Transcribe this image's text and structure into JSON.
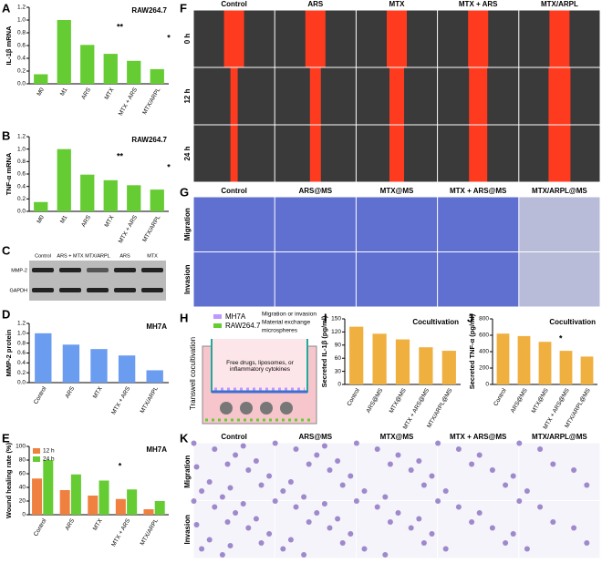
{
  "panel_labels": [
    "A",
    "B",
    "C",
    "D",
    "E",
    "F",
    "G",
    "H",
    "I",
    "J",
    "K"
  ],
  "chart_data": [
    {
      "type": "bar",
      "ylabel": "IL-1β mRNA",
      "categories": [
        "M0",
        "M1",
        "ARS",
        "MTX",
        "MTX + ARS",
        "MTX/ARPL"
      ],
      "values": [
        0.15,
        1.0,
        0.61,
        0.47,
        0.36,
        0.23
      ],
      "color": "#66cc33",
      "ylim": [
        0,
        1.2
      ],
      "yticks": [
        {
          "value": 0,
          "label": "0.0"
        },
        {
          "value": 0.2,
          "label": "0.2"
        },
        {
          "value": 0.4,
          "label": "0.4"
        },
        {
          "value": 0.6,
          "label": "0.6"
        },
        {
          "value": 0.8,
          "label": "0.8"
        },
        {
          "value": 1,
          "label": "1.0"
        },
        {
          "value": 1.2,
          "label": "1.2"
        }
      ],
      "annotations": [
        "RAW264.7",
        "**",
        "*"
      ]
    },
    {
      "type": "bar",
      "ylabel": "TNF-α mRNA",
      "categories": [
        "M0",
        "M1",
        "ARS",
        "MTX",
        "MTX + ARS",
        "MTX/ARPL"
      ],
      "values": [
        0.15,
        1.0,
        0.59,
        0.5,
        0.42,
        0.35
      ],
      "color": "#66cc33",
      "ylim": [
        0,
        1.2
      ],
      "yticks": [
        {
          "value": 0,
          "label": "0.0"
        },
        {
          "value": 0.2,
          "label": "0.2"
        },
        {
          "value": 0.4,
          "label": "0.4"
        },
        {
          "value": 0.6,
          "label": "0.6"
        },
        {
          "value": 0.8,
          "label": "0.8"
        },
        {
          "value": 1,
          "label": "1.0"
        },
        {
          "value": 1.2,
          "label": "1.2"
        }
      ],
      "annotations": [
        "RAW264.7",
        "**",
        "*"
      ]
    },
    {
      "type": "bar",
      "ylabel": "MMP-2 protein",
      "categories": [
        "Control",
        "ARS",
        "MTX",
        "MTX + ARS",
        "MTX/ARPL"
      ],
      "values": [
        1.0,
        0.77,
        0.68,
        0.55,
        0.25
      ],
      "color": "#6a9cf0",
      "ylim": [
        0,
        1.2
      ],
      "yticks": [
        {
          "value": 0,
          "label": "0.0"
        },
        {
          "value": 0.2,
          "label": "0.2"
        },
        {
          "value": 0.4,
          "label": "0.4"
        },
        {
          "value": 0.6,
          "label": "0.6"
        },
        {
          "value": 0.8,
          "label": "0.8"
        },
        {
          "value": 1,
          "label": "1.0"
        },
        {
          "value": 1.2,
          "label": "1.2"
        }
      ],
      "annotations": [
        "MH7A"
      ]
    },
    {
      "type": "grouped-bar",
      "ylabel": "Wound healing rate (%)",
      "categories": [
        "Control",
        "ARS",
        "MTX",
        "MTX + ARS",
        "MTX/ARPL"
      ],
      "series": [
        {
          "name": "12 h",
          "color": "#f08040",
          "values": [
            53,
            36,
            28,
            23,
            8
          ]
        },
        {
          "name": "24 h",
          "color": "#66cc33",
          "values": [
            80,
            59,
            50,
            37,
            20
          ]
        }
      ],
      "ylim": [
        0,
        100
      ],
      "yticks": [
        0,
        20,
        40,
        60,
        80,
        100
      ],
      "annotations": [
        "MH7A",
        "*"
      ]
    },
    {
      "type": "bar",
      "ylabel": "Secreted IL-1β (pg/ml)",
      "categories": [
        "Control",
        "ARS@MS",
        "MTX@MS",
        "MTX + ARS@MS",
        "MTX/ARPL@MS"
      ],
      "values": [
        132,
        116,
        103,
        85,
        77
      ],
      "color": "#f0b040",
      "ylim": [
        0,
        150
      ],
      "yticks": [
        0,
        30,
        60,
        90,
        120,
        150
      ],
      "annotations": [
        "Cocultivation"
      ]
    },
    {
      "type": "bar",
      "ylabel": "Secreted TNF-α (pg/ml)",
      "categories": [
        "Control",
        "ARS@MS",
        "MTX@MS",
        "MTX + ARS@MS",
        "MTX/ARPL@MS"
      ],
      "values": [
        620,
        590,
        520,
        410,
        340
      ],
      "color": "#f0b040",
      "ylim": [
        0,
        800
      ],
      "yticks": [
        0,
        200,
        400,
        600,
        800
      ],
      "annotations": [
        "Cocultivation",
        "*"
      ]
    }
  ],
  "blot": {
    "columns": [
      "Control",
      "ARS + MTX",
      "MTX/ARPL",
      "ARS",
      "MTX"
    ],
    "rows": [
      "MMP-2",
      "GAPDH"
    ]
  },
  "wound_images": {
    "columns": [
      "Control",
      "ARS",
      "MTX",
      "MTX + ARS",
      "MTX/ARPL"
    ],
    "rows": [
      "0 h",
      "12 h",
      "24 h"
    ]
  },
  "transwell_images": {
    "columns": [
      "Control",
      "ARS@MS",
      "MTX@MS",
      "MTX + ARS@MS",
      "MTX/ARPL@MS"
    ],
    "rows": [
      "Migration",
      "Invasion"
    ]
  },
  "stained_images": {
    "columns": [
      "Control",
      "ARS@MS",
      "MTX@MS",
      "MTX + ARS@MS",
      "MTX/ARPL@MS"
    ],
    "rows": [
      "Migration",
      "Invasion"
    ]
  },
  "diagram": {
    "title": "Transwell cocultivation",
    "legend": [
      "MH7A",
      "RAW264.7",
      "Migration or invasion",
      "Material exchange",
      "microspheres"
    ],
    "note": "Free drugs, liposomes, or inflammatory cytokines"
  }
}
